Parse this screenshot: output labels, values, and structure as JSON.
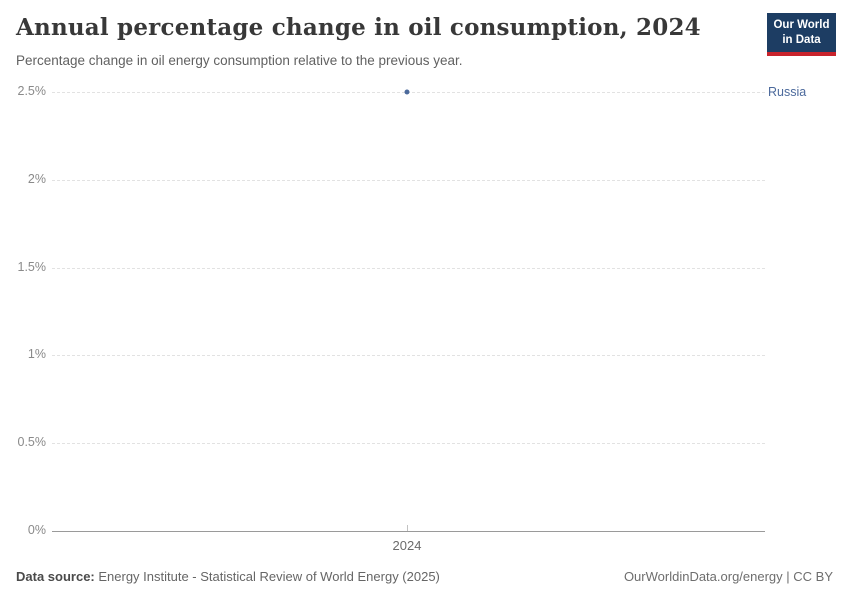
{
  "header": {
    "title": "Annual percentage change in oil consumption, 2024",
    "subtitle": "Percentage change in oil energy consumption relative to the previous year."
  },
  "logo": {
    "line1": "Our World",
    "line2": "in Data",
    "bg_color": "#1d3d63",
    "accent_color": "#c8232c"
  },
  "chart_data": {
    "type": "scatter",
    "title": "Annual percentage change in oil consumption, 2024",
    "series": [
      {
        "name": "Russia",
        "x": [
          2024
        ],
        "values": [
          2.5
        ],
        "color": "#4c6a9c"
      }
    ],
    "xlabel": "",
    "ylabel": "",
    "x_ticks": [
      {
        "label": "2024",
        "x": 2024
      }
    ],
    "y_ticks": [
      {
        "label": "2.5%",
        "value": 2.5
      },
      {
        "label": "2%",
        "value": 2.0
      },
      {
        "label": "1.5%",
        "value": 1.5
      },
      {
        "label": "1%",
        "value": 1.0
      },
      {
        "label": "0.5%",
        "value": 0.5
      },
      {
        "label": "0%",
        "value": 0.0
      }
    ],
    "ylim": [
      0,
      2.5
    ],
    "grid": "horizontal-dashed",
    "legend_position": "right-inline-label"
  },
  "footer": {
    "source_label": "Data source:",
    "source_text": " Energy Institute - Statistical Review of World Energy (2025)",
    "right_text": "OurWorldinData.org/energy | CC BY"
  }
}
